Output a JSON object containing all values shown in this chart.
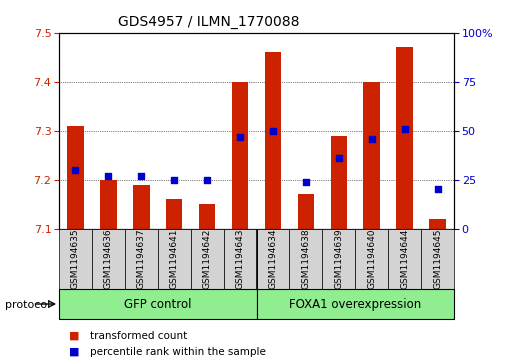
{
  "title": "GDS4957 / ILMN_1770088",
  "samples": [
    "GSM1194635",
    "GSM1194636",
    "GSM1194637",
    "GSM1194641",
    "GSM1194642",
    "GSM1194643",
    "GSM1194634",
    "GSM1194638",
    "GSM1194639",
    "GSM1194640",
    "GSM1194644",
    "GSM1194645"
  ],
  "transformed_count": [
    7.31,
    7.2,
    7.19,
    7.16,
    7.15,
    7.4,
    7.46,
    7.17,
    7.29,
    7.4,
    7.47,
    7.12
  ],
  "percentile_rank": [
    30,
    27,
    27,
    25,
    25,
    47,
    50,
    24,
    36,
    46,
    51,
    20
  ],
  "groups": [
    {
      "label": "GFP control",
      "start": 0,
      "end": 6
    },
    {
      "label": "FOXA1 overexpression",
      "start": 6,
      "end": 12
    }
  ],
  "ylim_left": [
    7.1,
    7.5
  ],
  "ylim_right": [
    0,
    100
  ],
  "left_ticks": [
    7.1,
    7.2,
    7.3,
    7.4,
    7.5
  ],
  "right_ticks": [
    0,
    25,
    50,
    75,
    100
  ],
  "bar_color": "#CC2200",
  "dot_color": "#0000CC",
  "bar_width": 0.5,
  "group_color": "#90EE90",
  "sample_bg_color": "#D3D3D3",
  "protocol_label": "protocol",
  "legend_items": [
    {
      "label": "transformed count",
      "color": "#CC2200"
    },
    {
      "label": "percentile rank within the sample",
      "color": "#0000CC"
    }
  ]
}
